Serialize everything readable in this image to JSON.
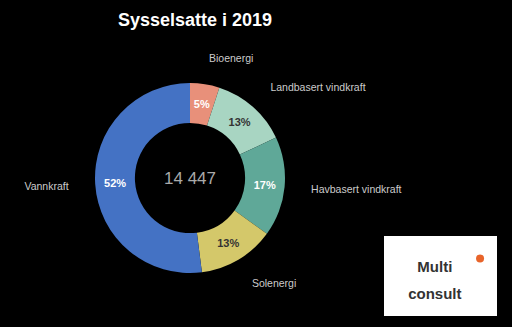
{
  "chart_data": {
    "type": "pie",
    "title": "Sysselsatte i 2019",
    "categories": [
      "Bioenergi",
      "Landbasert vindkraft",
      "Havbasert vindkraft",
      "Solenergi",
      "Vannkraft"
    ],
    "values": [
      5,
      13,
      17,
      13,
      52
    ],
    "value_labels": [
      "5%",
      "13%",
      "17%",
      "13%",
      "52%"
    ],
    "colors": [
      "#E8907A",
      "#A8D5C2",
      "#5FA898",
      "#D4C86A",
      "#4472C4"
    ],
    "data_labels": true,
    "annotations": [
      "14 447",
      "Multi",
      "consult"
    ]
  }
}
